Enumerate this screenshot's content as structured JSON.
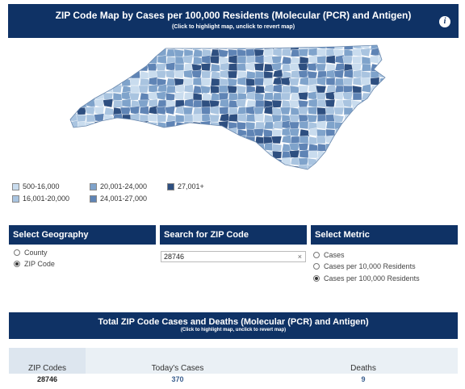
{
  "header": {
    "title": "ZIP Code Map by Cases per 100,000 Residents (Molecular (PCR) and Antigen)",
    "subtitle": "(Click to highlight map, unclick to revert map)",
    "info_icon": "i"
  },
  "legend": {
    "items": [
      {
        "label": "500-16,000",
        "color": "#c9dcee"
      },
      {
        "label": "16,001-20,000",
        "color": "#a9c4e0"
      },
      {
        "label": "20,001-24,000",
        "color": "#7fa3cb"
      },
      {
        "label": "24,001-27,000",
        "color": "#5f84b5"
      },
      {
        "label": "27,001+",
        "color": "#2e4f80"
      }
    ]
  },
  "geography": {
    "header": "Select Geography",
    "options": [
      "County",
      "ZIP Code"
    ],
    "selected": "ZIP Code"
  },
  "search": {
    "header": "Search for ZIP Code",
    "value": "28746",
    "clear_glyph": "×"
  },
  "metric": {
    "header": "Select Metric",
    "options": [
      "Cases",
      "Cases per 10,000 Residents",
      "Cases per 100,000 Residents"
    ],
    "selected": "Cases per 100,000 Residents"
  },
  "totals": {
    "title": "Total ZIP Code Cases and Deaths (Molecular (PCR) and Antigen)",
    "subtitle": "(Click to highlight map, unclick to revert map)",
    "columns": [
      "ZIP Codes",
      "Today's Cases",
      "Deaths"
    ],
    "row": {
      "zip": "28746",
      "cases": "370",
      "deaths": "9"
    },
    "value_color": "#3b5f8f"
  }
}
